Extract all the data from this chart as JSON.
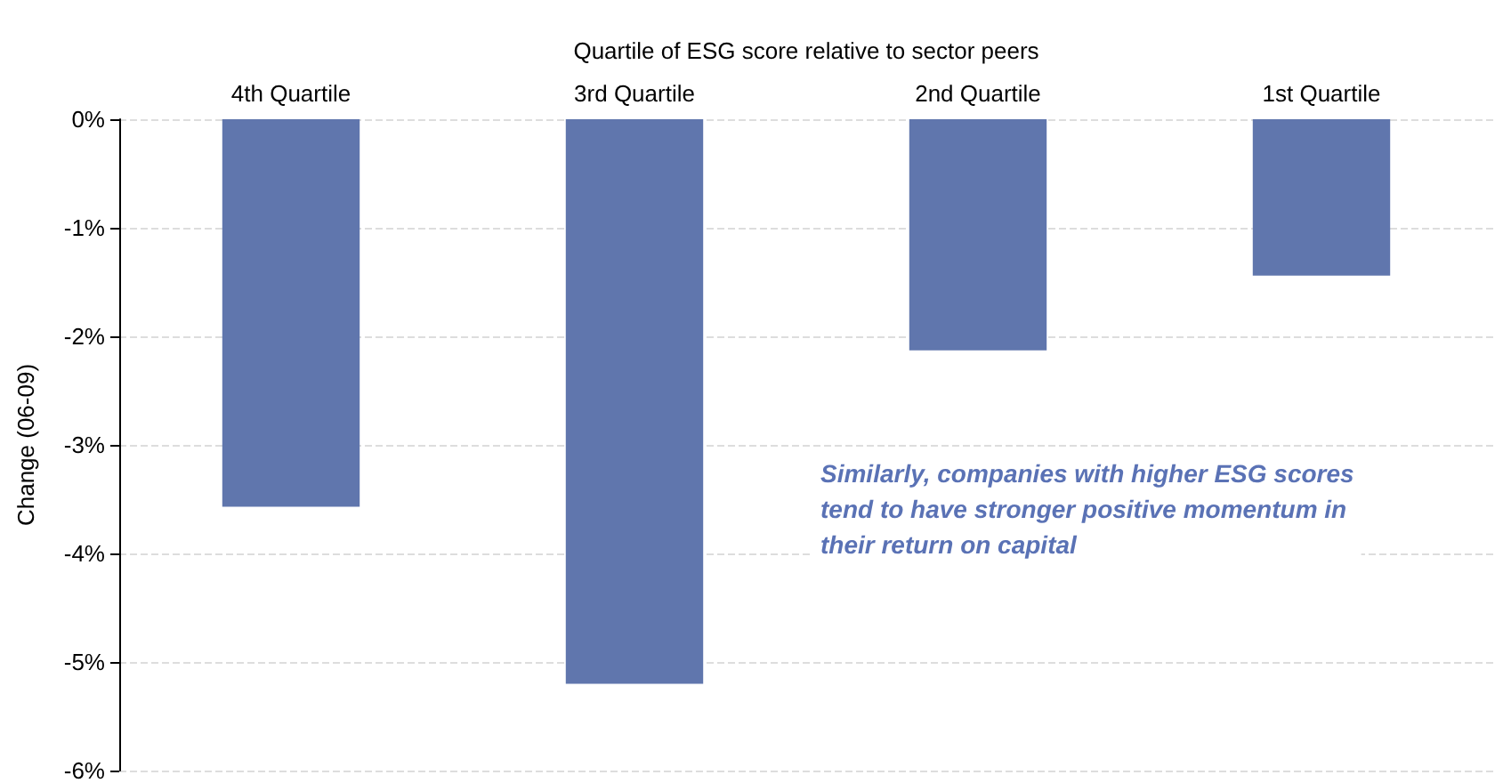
{
  "chart_data": {
    "type": "bar",
    "xlabel": "Quartile of ESG score relative to sector peers",
    "ylabel": "Change (06-09)",
    "categories": [
      "4th Quartile",
      "3rd Quartile",
      "2nd Quartile",
      "1st Quartile"
    ],
    "values": [
      -3.57,
      -5.2,
      -2.13,
      -1.44
    ],
    "color": "#6076ad",
    "ylim": [
      -6,
      0
    ],
    "yticks": [
      {
        "value": -6,
        "label": "-6%"
      },
      {
        "value": -5,
        "label": "-5%"
      },
      {
        "value": -4,
        "label": "-4%"
      },
      {
        "value": -3,
        "label": "-3%"
      },
      {
        "value": -2,
        "label": "-2%"
      },
      {
        "value": -1,
        "label": "-1%"
      },
      {
        "value": 0,
        "label": "0%"
      }
    ],
    "grid": "y",
    "annotations": [
      "Similarly, companies with higher ESG scores\ntend to have stronger positive momentum in\ntheir return on capital"
    ]
  }
}
